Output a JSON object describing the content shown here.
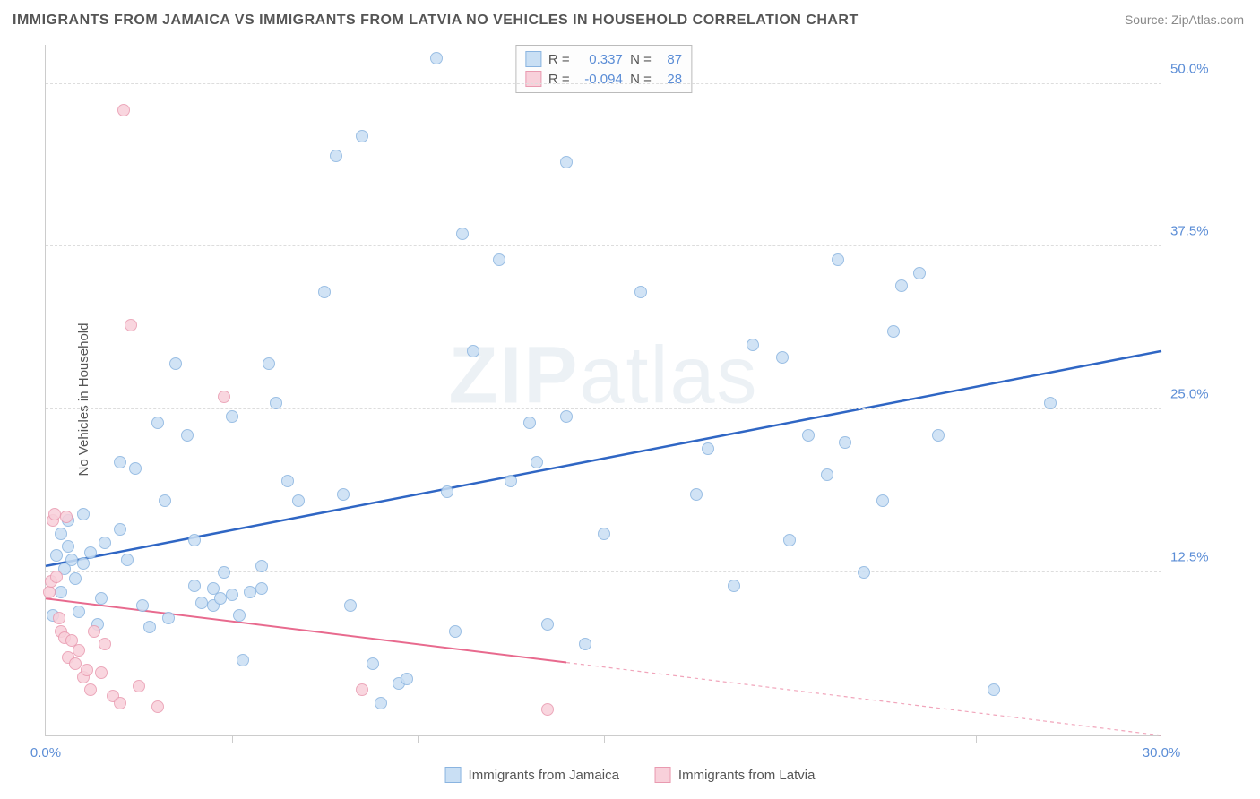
{
  "title": "IMMIGRANTS FROM JAMAICA VS IMMIGRANTS FROM LATVIA NO VEHICLES IN HOUSEHOLD CORRELATION CHART",
  "source": "Source: ZipAtlas.com",
  "ylabel": "No Vehicles in Household",
  "watermark": "ZIPatlas",
  "chart": {
    "type": "scatter",
    "xlim": [
      0,
      30
    ],
    "ylim": [
      0,
      53
    ],
    "yticks": [
      {
        "v": 12.5,
        "label": "12.5%"
      },
      {
        "v": 25.0,
        "label": "25.0%"
      },
      {
        "v": 37.5,
        "label": "37.5%"
      },
      {
        "v": 50.0,
        "label": "50.0%"
      }
    ],
    "xticks": [
      {
        "v": 0,
        "label": "0.0%"
      },
      {
        "v": 30,
        "label": "30.0%"
      }
    ],
    "xminor": [
      5,
      10,
      15,
      20,
      25
    ],
    "grid_color": "#dddddd",
    "background_color": "#ffffff",
    "axis_color": "#cccccc",
    "tick_label_color": "#5b8dd6",
    "title_fontsize": 16,
    "label_fontsize": 15,
    "series": [
      {
        "name": "Immigrants from Jamaica",
        "fill": "#c9dff4",
        "stroke": "#8ab4e0",
        "R": "0.337",
        "N": "87",
        "trend": {
          "y_at_x0": 13.0,
          "y_at_xmax": 29.5,
          "color": "#2f66c4",
          "width": 2.5,
          "dash_from_x": null
        },
        "marker_radius": 7,
        "points": [
          [
            0.3,
            13.8
          ],
          [
            0.5,
            12.8
          ],
          [
            0.6,
            14.5
          ],
          [
            0.7,
            13.5
          ],
          [
            0.4,
            15.5
          ],
          [
            0.8,
            12.0
          ],
          [
            1.0,
            13.2
          ],
          [
            1.0,
            17.0
          ],
          [
            0.6,
            16.5
          ],
          [
            0.4,
            11.0
          ],
          [
            0.2,
            9.2
          ],
          [
            1.2,
            14.0
          ],
          [
            1.4,
            8.5
          ],
          [
            1.5,
            10.5
          ],
          [
            1.6,
            14.8
          ],
          [
            2.0,
            15.8
          ],
          [
            2.0,
            21.0
          ],
          [
            2.2,
            13.5
          ],
          [
            2.4,
            20.5
          ],
          [
            2.6,
            10.0
          ],
          [
            2.8,
            8.3
          ],
          [
            3.0,
            24.0
          ],
          [
            3.2,
            18.0
          ],
          [
            3.3,
            9.0
          ],
          [
            3.5,
            28.5
          ],
          [
            3.8,
            23.0
          ],
          [
            4.0,
            11.5
          ],
          [
            4.0,
            15.0
          ],
          [
            4.2,
            10.2
          ],
          [
            4.5,
            10.0
          ],
          [
            4.5,
            11.3
          ],
          [
            4.7,
            10.5
          ],
          [
            4.8,
            12.5
          ],
          [
            5.0,
            24.5
          ],
          [
            5.0,
            10.8
          ],
          [
            5.2,
            9.2
          ],
          [
            5.3,
            5.8
          ],
          [
            5.5,
            11.0
          ],
          [
            5.8,
            11.3
          ],
          [
            5.8,
            13.0
          ],
          [
            6.0,
            28.5
          ],
          [
            6.2,
            25.5
          ],
          [
            6.5,
            19.5
          ],
          [
            6.8,
            18.0
          ],
          [
            7.5,
            34.0
          ],
          [
            7.8,
            44.5
          ],
          [
            8.2,
            10.0
          ],
          [
            8.0,
            18.5
          ],
          [
            8.5,
            46.0
          ],
          [
            8.8,
            5.5
          ],
          [
            9.0,
            2.5
          ],
          [
            9.5,
            4.0
          ],
          [
            9.7,
            4.3
          ],
          [
            10.5,
            52.0
          ],
          [
            10.8,
            18.7
          ],
          [
            11.0,
            8.0
          ],
          [
            11.2,
            38.5
          ],
          [
            11.5,
            29.5
          ],
          [
            12.2,
            36.5
          ],
          [
            12.5,
            19.5
          ],
          [
            13.0,
            24.0
          ],
          [
            13.2,
            21.0
          ],
          [
            13.5,
            8.5
          ],
          [
            14.0,
            24.5
          ],
          [
            14.0,
            44.0
          ],
          [
            14.5,
            7.0
          ],
          [
            15.0,
            15.5
          ],
          [
            16.0,
            34.0
          ],
          [
            17.5,
            18.5
          ],
          [
            17.8,
            22.0
          ],
          [
            18.5,
            11.5
          ],
          [
            19.0,
            30.0
          ],
          [
            19.8,
            29.0
          ],
          [
            20.0,
            15.0
          ],
          [
            20.5,
            23.0
          ],
          [
            21.0,
            20.0
          ],
          [
            21.3,
            36.5
          ],
          [
            21.5,
            22.5
          ],
          [
            22.0,
            12.5
          ],
          [
            22.5,
            18.0
          ],
          [
            22.8,
            31.0
          ],
          [
            23.5,
            35.5
          ],
          [
            24.0,
            23.0
          ],
          [
            25.5,
            3.5
          ],
          [
            27.0,
            25.5
          ],
          [
            23.0,
            34.5
          ],
          [
            0.9,
            9.5
          ]
        ]
      },
      {
        "name": "Immigrants from Latvia",
        "fill": "#f8d0da",
        "stroke": "#e99ab0",
        "R": "-0.094",
        "N": "28",
        "trend": {
          "y_at_x0": 10.5,
          "y_at_xmax": 0.0,
          "color": "#e86a8e",
          "width": 2,
          "dash_from_x": 14
        },
        "marker_radius": 7,
        "points": [
          [
            0.1,
            11.0
          ],
          [
            0.15,
            11.8
          ],
          [
            0.2,
            16.5
          ],
          [
            0.25,
            17.0
          ],
          [
            0.3,
            12.2
          ],
          [
            0.35,
            9.0
          ],
          [
            0.4,
            8.0
          ],
          [
            0.5,
            7.5
          ],
          [
            0.55,
            16.8
          ],
          [
            0.6,
            6.0
          ],
          [
            0.7,
            7.3
          ],
          [
            0.8,
            5.5
          ],
          [
            0.9,
            6.5
          ],
          [
            1.0,
            4.5
          ],
          [
            1.1,
            5.0
          ],
          [
            1.2,
            3.5
          ],
          [
            1.3,
            8.0
          ],
          [
            1.5,
            4.8
          ],
          [
            1.6,
            7.0
          ],
          [
            1.8,
            3.0
          ],
          [
            2.0,
            2.5
          ],
          [
            2.1,
            48.0
          ],
          [
            2.3,
            31.5
          ],
          [
            2.5,
            3.8
          ],
          [
            3.0,
            2.2
          ],
          [
            4.8,
            26.0
          ],
          [
            8.5,
            3.5
          ],
          [
            13.5,
            2.0
          ]
        ]
      }
    ]
  },
  "bottom_legend": [
    {
      "label": "Immigrants from Jamaica",
      "fill": "#c9dff4",
      "stroke": "#8ab4e0"
    },
    {
      "label": "Immigrants from Latvia",
      "fill": "#f8d0da",
      "stroke": "#e99ab0"
    }
  ]
}
